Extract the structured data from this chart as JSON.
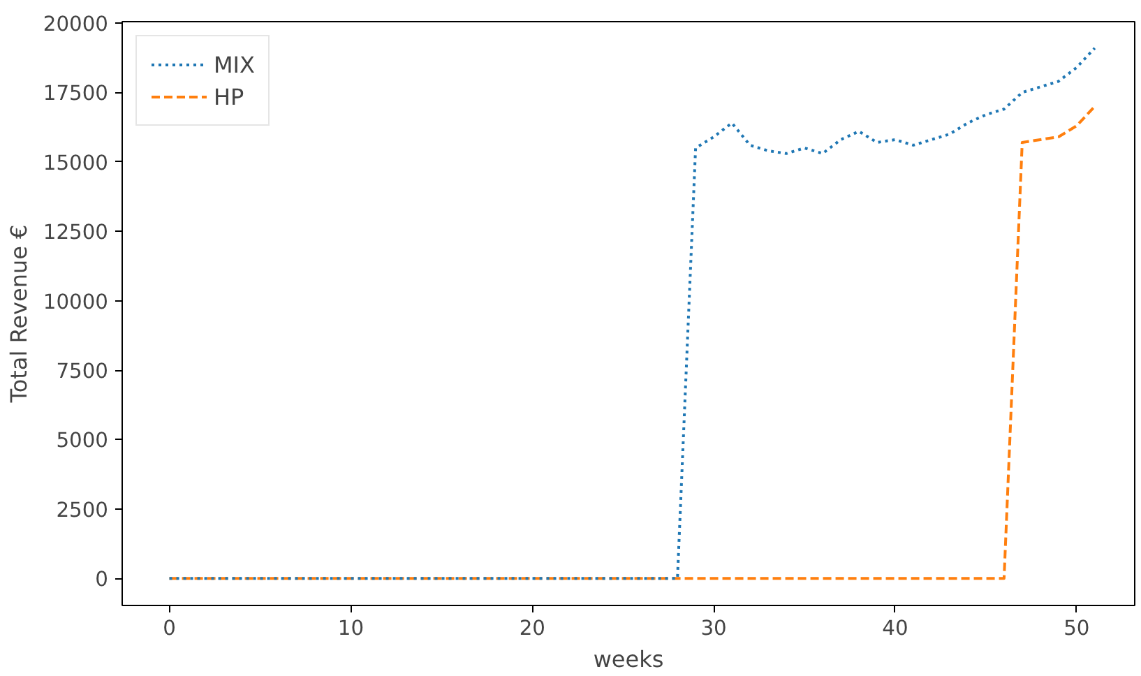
{
  "chart_data": {
    "type": "line",
    "xlabel": "weeks",
    "ylabel": "Total Revenue €",
    "x": [
      0,
      1,
      2,
      3,
      4,
      5,
      6,
      7,
      8,
      9,
      10,
      11,
      12,
      13,
      14,
      15,
      16,
      17,
      18,
      19,
      20,
      21,
      22,
      23,
      24,
      25,
      26,
      27,
      28,
      29,
      30,
      31,
      32,
      33,
      34,
      35,
      36,
      37,
      38,
      39,
      40,
      41,
      42,
      43,
      44,
      45,
      46,
      47,
      48,
      49,
      50,
      51
    ],
    "series": [
      {
        "name": "MIX",
        "color": "#1f77b4",
        "line_style": "dotted",
        "values": [
          0,
          0,
          0,
          0,
          0,
          0,
          0,
          0,
          0,
          0,
          0,
          0,
          0,
          0,
          0,
          0,
          0,
          0,
          0,
          0,
          0,
          0,
          0,
          0,
          0,
          0,
          0,
          0,
          0,
          15500,
          15900,
          16400,
          15600,
          15400,
          15300,
          15500,
          15300,
          15800,
          16100,
          15700,
          15800,
          15600,
          15800,
          16000,
          16400,
          16700,
          16900,
          17500,
          17700,
          17900,
          18400,
          19100
        ]
      },
      {
        "name": "HP",
        "color": "#ff7f0e",
        "line_style": "dashed",
        "values": [
          0,
          0,
          0,
          0,
          0,
          0,
          0,
          0,
          0,
          0,
          0,
          0,
          0,
          0,
          0,
          0,
          0,
          0,
          0,
          0,
          0,
          0,
          0,
          0,
          0,
          0,
          0,
          0,
          0,
          0,
          0,
          0,
          0,
          0,
          0,
          0,
          0,
          0,
          0,
          0,
          0,
          0,
          0,
          0,
          0,
          0,
          0,
          15700,
          15800,
          15900,
          16300,
          17000
        ]
      }
    ],
    "xlim": [
      -2.6,
      53.2
    ],
    "ylim": [
      -975,
      20050
    ],
    "xticks": [
      0,
      10,
      20,
      30,
      40,
      50
    ],
    "yticks": [
      0,
      2500,
      5000,
      7500,
      10000,
      12500,
      15000,
      17500,
      20000
    ],
    "grid": false,
    "legend": "top left"
  }
}
